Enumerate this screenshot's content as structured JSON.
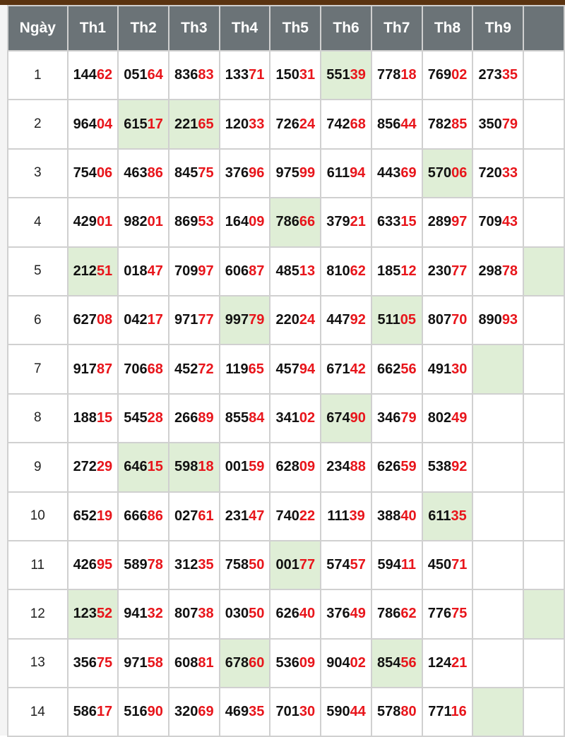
{
  "header": [
    "Ngày",
    "Th1",
    "Th2",
    "Th3",
    "Th4",
    "Th5",
    "Th6",
    "Th7",
    "Th8",
    "Th9",
    ""
  ],
  "colors": {
    "header_bg": "#6b7377",
    "highlight": "#dfeed6",
    "tail_digits": "#e8151b",
    "top_bar": "#5a3310"
  },
  "rows": [
    {
      "day": "1",
      "values": [
        "14462",
        "05164",
        "83683",
        "13371",
        "15031",
        "55139",
        "77818",
        "76902",
        "27335",
        ""
      ],
      "highlight": [
        6
      ]
    },
    {
      "day": "2",
      "values": [
        "96404",
        "61517",
        "22165",
        "12033",
        "72624",
        "74268",
        "85644",
        "78285",
        "35079",
        ""
      ],
      "highlight": [
        2,
        3
      ]
    },
    {
      "day": "3",
      "values": [
        "75406",
        "46386",
        "84575",
        "37696",
        "97599",
        "61194",
        "44369",
        "57006",
        "72033",
        ""
      ],
      "highlight": [
        8
      ]
    },
    {
      "day": "4",
      "values": [
        "42901",
        "98201",
        "86953",
        "16409",
        "78666",
        "37921",
        "63315",
        "28997",
        "70943",
        ""
      ],
      "highlight": [
        5
      ]
    },
    {
      "day": "5",
      "values": [
        "21251",
        "01847",
        "70997",
        "60687",
        "48513",
        "81062",
        "18512",
        "23077",
        "29878",
        ""
      ],
      "highlight": [
        1,
        10
      ]
    },
    {
      "day": "6",
      "values": [
        "62708",
        "04217",
        "97177",
        "99779",
        "22024",
        "44792",
        "51105",
        "80770",
        "89093",
        ""
      ],
      "highlight": [
        4,
        7
      ]
    },
    {
      "day": "7",
      "values": [
        "91787",
        "70668",
        "45272",
        "11965",
        "45794",
        "67142",
        "66256",
        "49130",
        "",
        ""
      ],
      "highlight": [
        9
      ]
    },
    {
      "day": "8",
      "values": [
        "18815",
        "54528",
        "26689",
        "85584",
        "34102",
        "67490",
        "34679",
        "80249",
        "",
        ""
      ],
      "highlight": [
        6
      ]
    },
    {
      "day": "9",
      "values": [
        "27229",
        "64615",
        "59818",
        "00159",
        "62809",
        "23488",
        "62659",
        "53892",
        "",
        ""
      ],
      "highlight": [
        2,
        3
      ]
    },
    {
      "day": "10",
      "values": [
        "65219",
        "66686",
        "02761",
        "23147",
        "74022",
        "11139",
        "38840",
        "61135",
        "",
        ""
      ],
      "highlight": [
        8
      ]
    },
    {
      "day": "11",
      "values": [
        "42695",
        "58978",
        "31235",
        "75850",
        "00177",
        "57457",
        "59411",
        "45071",
        "",
        ""
      ],
      "highlight": [
        5
      ]
    },
    {
      "day": "12",
      "values": [
        "12352",
        "94132",
        "80738",
        "03050",
        "62640",
        "37649",
        "78662",
        "77675",
        "",
        ""
      ],
      "highlight": [
        1,
        10
      ]
    },
    {
      "day": "13",
      "values": [
        "35675",
        "97158",
        "60881",
        "67860",
        "53609",
        "90402",
        "85456",
        "12421",
        "",
        ""
      ],
      "highlight": [
        4,
        7
      ]
    },
    {
      "day": "14",
      "values": [
        "58617",
        "51690",
        "32069",
        "46935",
        "70130",
        "59044",
        "57880",
        "77116",
        "",
        ""
      ],
      "highlight": [
        9
      ]
    }
  ]
}
